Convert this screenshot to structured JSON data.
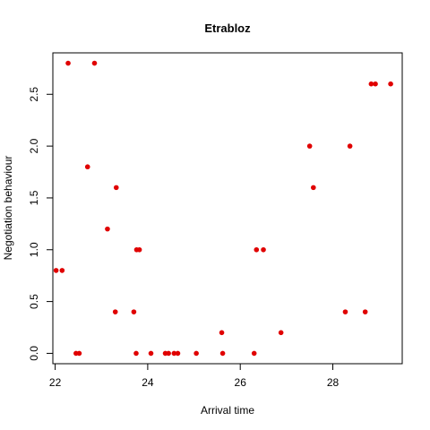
{
  "chart_data": {
    "type": "scatter",
    "title": "Etrabloz",
    "xlabel": "Arrival time",
    "ylabel": "Negotiation behaviour",
    "xlim": [
      21.95,
      29.5
    ],
    "ylim": [
      -0.1,
      2.9
    ],
    "xticks": [
      22,
      24,
      26,
      28
    ],
    "yticks": [
      0.0,
      0.5,
      1.0,
      1.5,
      2.0,
      2.5
    ],
    "ytick_labels": [
      "0.0",
      "0.5",
      "1.0",
      "1.5",
      "2.0",
      "2.5"
    ],
    "grid": false,
    "point_color": "#e00000",
    "points": [
      {
        "x": 22.02,
        "y": 0.8
      },
      {
        "x": 22.15,
        "y": 0.8
      },
      {
        "x": 22.28,
        "y": 2.8
      },
      {
        "x": 22.45,
        "y": 0.0
      },
      {
        "x": 22.52,
        "y": 0.0
      },
      {
        "x": 22.7,
        "y": 1.8
      },
      {
        "x": 22.85,
        "y": 2.8
      },
      {
        "x": 23.13,
        "y": 1.2
      },
      {
        "x": 23.3,
        "y": 0.4
      },
      {
        "x": 23.32,
        "y": 1.6
      },
      {
        "x": 23.7,
        "y": 0.4
      },
      {
        "x": 23.75,
        "y": 0.0
      },
      {
        "x": 23.76,
        "y": 1.0
      },
      {
        "x": 23.82,
        "y": 1.0
      },
      {
        "x": 24.07,
        "y": 0.0
      },
      {
        "x": 24.38,
        "y": 0.0
      },
      {
        "x": 24.45,
        "y": 0.0
      },
      {
        "x": 24.57,
        "y": 0.0
      },
      {
        "x": 24.65,
        "y": 0.0
      },
      {
        "x": 25.05,
        "y": 0.0
      },
      {
        "x": 25.6,
        "y": 0.2
      },
      {
        "x": 25.62,
        "y": 0.0
      },
      {
        "x": 26.3,
        "y": 0.0
      },
      {
        "x": 26.35,
        "y": 1.0
      },
      {
        "x": 26.5,
        "y": 1.0
      },
      {
        "x": 26.88,
        "y": 0.2
      },
      {
        "x": 27.5,
        "y": 2.0
      },
      {
        "x": 27.58,
        "y": 1.6
      },
      {
        "x": 28.27,
        "y": 0.4
      },
      {
        "x": 28.37,
        "y": 2.0
      },
      {
        "x": 28.7,
        "y": 0.4
      },
      {
        "x": 28.83,
        "y": 2.6
      },
      {
        "x": 28.92,
        "y": 2.6
      },
      {
        "x": 29.25,
        "y": 2.6
      }
    ]
  }
}
